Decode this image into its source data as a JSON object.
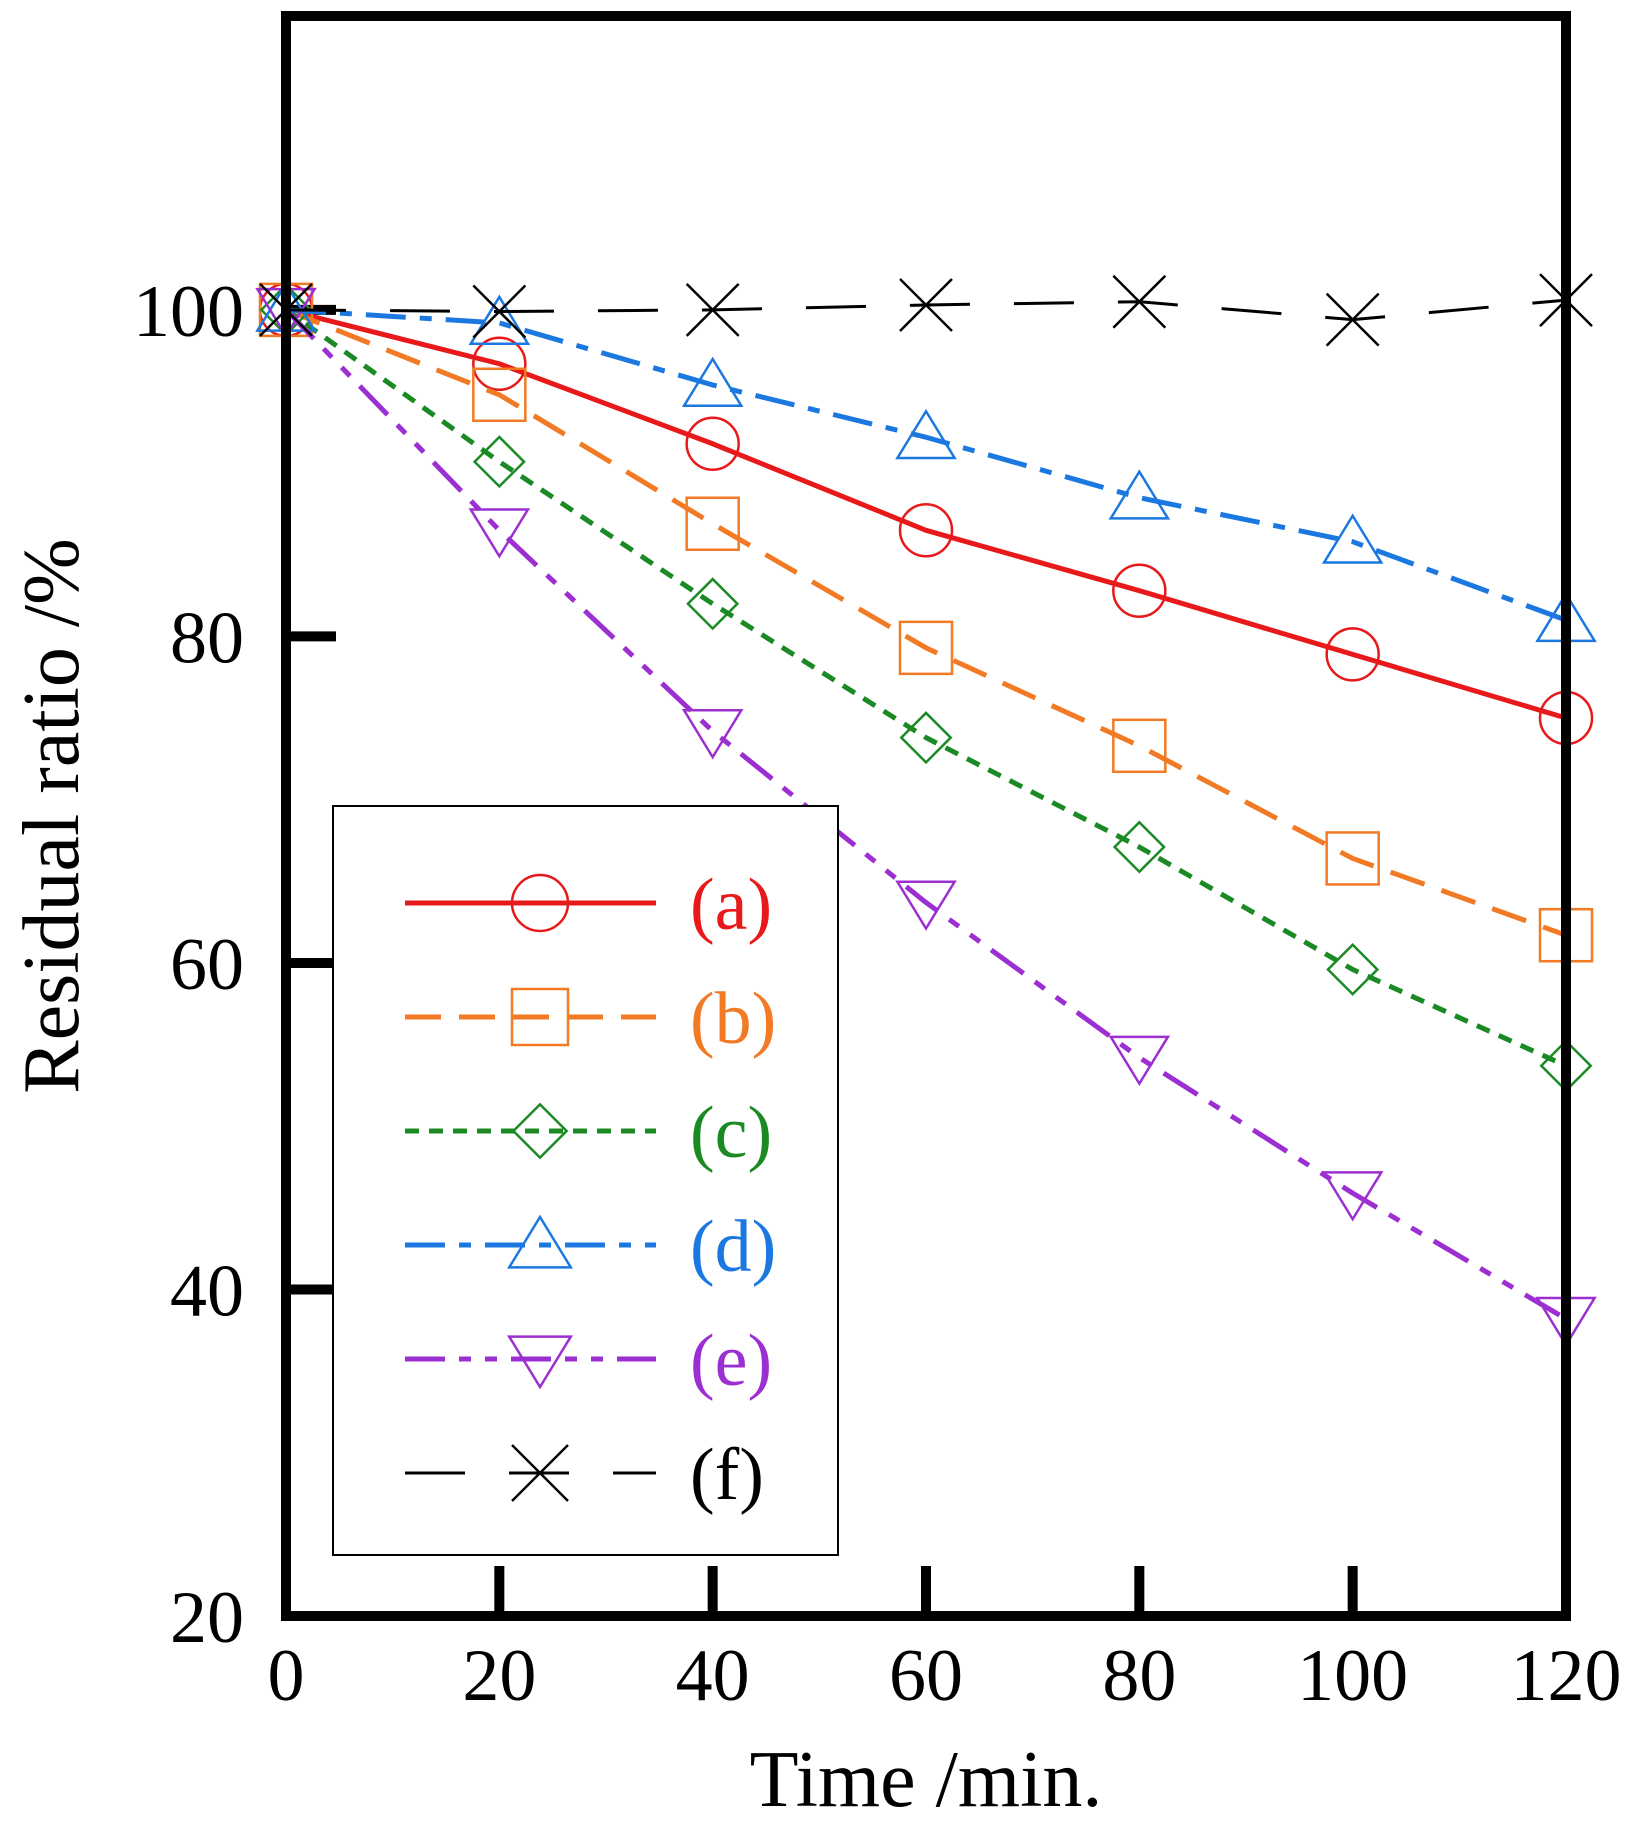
{
  "chart_data": {
    "type": "line",
    "xlabel": "Time /min.",
    "ylabel": "Residual ratio /%",
    "x": [
      0,
      20,
      40,
      60,
      80,
      100,
      120
    ],
    "xlim": [
      0,
      120
    ],
    "ylim": [
      20,
      118
    ],
    "xticks": [
      "0",
      "20",
      "40",
      "60",
      "80",
      "100",
      "120"
    ],
    "yticks": [
      "20",
      "40",
      "60",
      "80",
      "100"
    ],
    "ytick_values": [
      20,
      40,
      60,
      80,
      100
    ],
    "legend_position": "lower-left",
    "grid": false,
    "series": [
      {
        "name": "(a)",
        "color": "#e8191b",
        "marker": "circle",
        "dash": "solid",
        "values": [
          100,
          96.7,
          91.8,
          86.5,
          82.8,
          78.9,
          75.0
        ]
      },
      {
        "name": "(b)",
        "color": "#f27a25",
        "marker": "square",
        "dash": "dashed",
        "values": [
          100,
          94.8,
          86.9,
          79.3,
          73.3,
          66.4,
          61.7
        ]
      },
      {
        "name": "(c)",
        "color": "#1b8a25",
        "marker": "diamond",
        "dash": "dotted",
        "values": [
          100,
          90.7,
          82.0,
          73.8,
          67.1,
          59.6,
          53.7
        ]
      },
      {
        "name": "(d)",
        "color": "#1a78e0",
        "marker": "triangle-up",
        "dash": "dashdot",
        "values": [
          100,
          99.2,
          95.4,
          92.2,
          88.5,
          85.8,
          81.0
        ]
      },
      {
        "name": "(e)",
        "color": "#9c2fd1",
        "marker": "triangle-down",
        "dash": "dashdotdot",
        "values": [
          100,
          86.5,
          74.2,
          63.7,
          54.2,
          45.9,
          38.2
        ]
      },
      {
        "name": "(f)",
        "color": "#000000",
        "marker": "x",
        "dash": "longdash",
        "values": [
          100,
          99.9,
          100.0,
          100.3,
          100.5,
          99.4,
          100.6
        ]
      }
    ]
  }
}
